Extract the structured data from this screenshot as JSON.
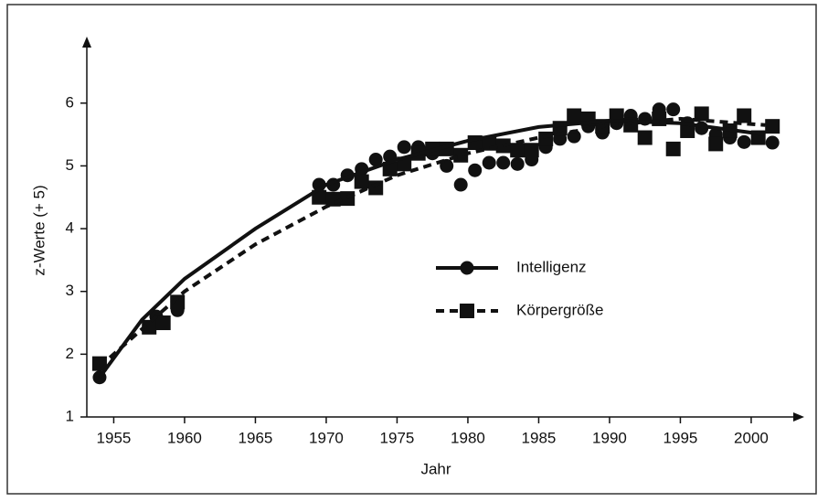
{
  "chart_data": {
    "type": "scatter",
    "x_label": "Jahr",
    "y_label": "z-Werte (+ 5)",
    "xlim": [
      1953.1,
      2003.1
    ],
    "ylim": [
      1,
      6.9
    ],
    "xticks": [
      1955,
      1960,
      1965,
      1970,
      1975,
      1980,
      1985,
      1990,
      1995,
      2000
    ],
    "yticks": [
      1,
      2,
      3,
      4,
      5,
      6
    ],
    "grid": false,
    "series": [
      {
        "name": "Intelligenz",
        "color": "#111111",
        "marker": "circle",
        "line": "solid",
        "x": [
          1954,
          1958,
          1959.5,
          1969.5,
          1970.5,
          1971.5,
          1972.5,
          1973.5,
          1974.5,
          1975.5,
          1976.5,
          1977.5,
          1978.5,
          1979.5,
          1980.5,
          1981.5,
          1982.5,
          1983.5,
          1984.5,
          1985.5,
          1986.5,
          1987.5,
          1988.5,
          1989.5,
          1990.5,
          1991.5,
          1992.5,
          1993.5,
          1994.5,
          1995.5,
          1996.5,
          1997.5,
          1998.5,
          1999.5,
          2000.5,
          2001.5
        ],
        "values": [
          1.63,
          2.6,
          2.7,
          4.7,
          4.7,
          4.85,
          4.95,
          5.1,
          5.15,
          5.3,
          5.3,
          5.2,
          5.0,
          4.7,
          4.93,
          5.05,
          5.05,
          5.03,
          5.1,
          5.3,
          5.43,
          5.47,
          5.63,
          5.53,
          5.68,
          5.8,
          5.75,
          5.9,
          5.9,
          5.68,
          5.6,
          5.5,
          5.45,
          5.38,
          5.45,
          5.37
        ],
        "fit_x": [
          1954,
          1957,
          1960,
          1965,
          1970,
          1975,
          1980,
          1985,
          1990,
          1995,
          2001
        ],
        "fit_values": [
          1.63,
          2.55,
          3.2,
          4.0,
          4.7,
          5.1,
          5.4,
          5.62,
          5.72,
          5.68,
          5.5
        ]
      },
      {
        "name": "Körpergröße",
        "color": "#111111",
        "marker": "square",
        "line": "dashed",
        "x": [
          1954,
          1957.5,
          1958.5,
          1959.5,
          1969.5,
          1970.5,
          1971.5,
          1972.5,
          1973.5,
          1974.5,
          1975.5,
          1976.5,
          1977.5,
          1978.5,
          1979.5,
          1980.5,
          1981.5,
          1982.5,
          1983.5,
          1984.5,
          1985.5,
          1986.5,
          1987.5,
          1988.5,
          1989.5,
          1990.5,
          1991.5,
          1992.5,
          1993.5,
          1994.5,
          1995.5,
          1996.5,
          1997.5,
          1998.5,
          1999.5,
          2000.5,
          2001.5
        ],
        "values": [
          1.85,
          2.43,
          2.5,
          2.83,
          4.5,
          4.47,
          4.48,
          4.75,
          4.65,
          4.95,
          5.03,
          5.2,
          5.27,
          5.27,
          5.17,
          5.37,
          5.36,
          5.32,
          5.25,
          5.25,
          5.43,
          5.6,
          5.8,
          5.75,
          5.63,
          5.8,
          5.65,
          5.45,
          5.75,
          5.27,
          5.56,
          5.83,
          5.35,
          5.56,
          5.8,
          5.45,
          5.63
        ],
        "fit_x": [
          1954,
          1957,
          1960,
          1965,
          1970,
          1975,
          1980,
          1985,
          1990,
          1995,
          2001
        ],
        "fit_values": [
          1.8,
          2.4,
          3.0,
          3.75,
          4.35,
          4.85,
          5.2,
          5.45,
          5.65,
          5.75,
          5.65
        ]
      }
    ]
  }
}
